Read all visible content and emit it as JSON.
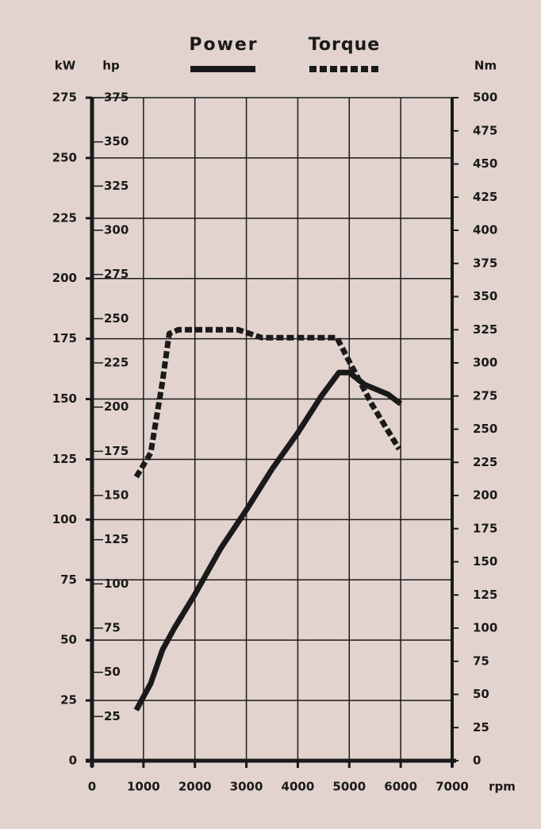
{
  "chart_data": {
    "type": "line",
    "x_label": "rpm",
    "y_label": "kW",
    "y2_label": "Nm",
    "y3_label": "hp",
    "xlim": [
      0,
      7000
    ],
    "xticks": [
      0,
      1000,
      2000,
      3000,
      4000,
      5000,
      6000,
      7000
    ],
    "ylim": [
      0,
      275
    ],
    "yticks": [
      0,
      25,
      50,
      75,
      100,
      125,
      150,
      175,
      200,
      225,
      250,
      275
    ],
    "y2lim": [
      0,
      500
    ],
    "y2ticks": [
      0,
      25,
      50,
      75,
      100,
      125,
      150,
      175,
      200,
      225,
      250,
      275,
      300,
      325,
      350,
      375,
      400,
      425,
      450,
      475,
      500
    ],
    "y3lim": [
      0,
      375
    ],
    "y3ticks": [
      25,
      50,
      75,
      100,
      125,
      150,
      175,
      200,
      225,
      250,
      275,
      300,
      325,
      350,
      375
    ],
    "grid": true,
    "series": [
      {
        "name": "Power",
        "color": "#1a1a1a",
        "line_style": "solid",
        "x": [
          860,
          1140,
          1370,
          1600,
          2000,
          2500,
          3000,
          3500,
          4000,
          4450,
          4800,
          5000,
          5300,
          5750,
          6000
        ],
        "values": [
          21,
          32,
          46,
          55,
          69,
          88,
          104,
          121,
          136,
          151,
          161,
          161,
          156,
          152,
          148
        ]
      },
      {
        "name": "Torque",
        "color": "#1a1a1a",
        "line_style": "dashed",
        "axis": "y2",
        "x": [
          860,
          1140,
          1370,
          1500,
          1680,
          2840,
          3300,
          4760,
          5000,
          5450,
          5970
        ],
        "values": [
          214,
          232,
          286,
          322,
          325,
          325,
          319,
          319,
          301,
          268,
          235
        ]
      }
    ]
  }
}
